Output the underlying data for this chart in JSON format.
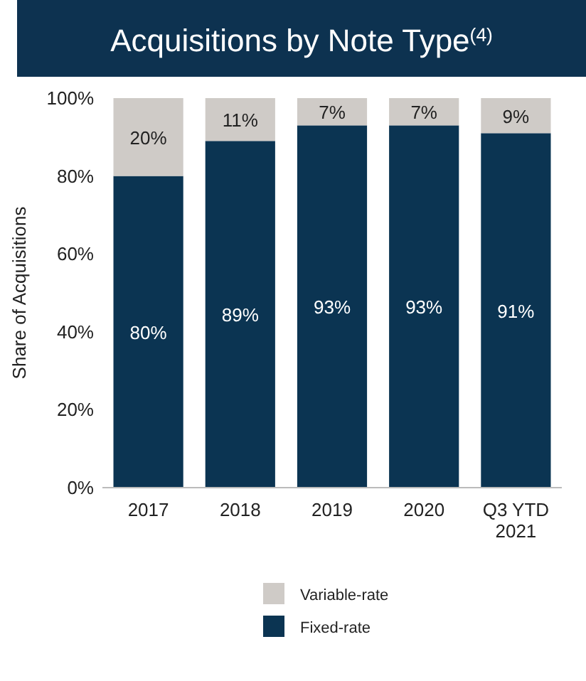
{
  "chart_data": {
    "type": "bar",
    "title": "Acquisitions by Note Type$^{(4)}$",
    "ylabel": "Share of Acquisitions",
    "stacked": true,
    "legend": "bottom",
    "categories": [
      "2017",
      "2018",
      "2019",
      "2020",
      "Q3 YTD 2021"
    ],
    "ylim": [
      0,
      100
    ],
    "yticks": [
      {
        "value": 0,
        "label": "0%"
      },
      {
        "value": 20,
        "label": "20%"
      },
      {
        "value": 40,
        "label": "40%"
      },
      {
        "value": 60,
        "label": "60%"
      },
      {
        "value": 80,
        "label": "80%"
      },
      {
        "value": 100,
        "label": "100%"
      }
    ],
    "series": [
      {
        "name": "Fixed-rate",
        "color": "#0b3452",
        "values": [
          80,
          89,
          93,
          93,
          91
        ],
        "value_labels": [
          "80%",
          "89%",
          "93%",
          "93%",
          "91%"
        ]
      },
      {
        "name": "Variable-rate",
        "color": "#cfcbc7",
        "values": [
          20,
          11,
          7,
          7,
          9
        ],
        "value_labels": [
          "20%",
          "11%",
          "7%",
          "7%",
          "9%"
        ]
      }
    ]
  }
}
